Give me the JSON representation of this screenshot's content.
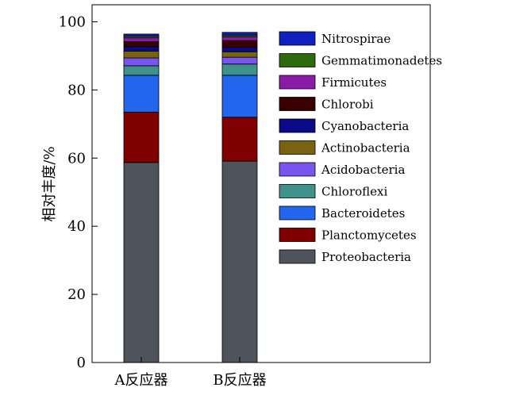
{
  "chart_data": {
    "type": "bar",
    "stacked": true,
    "ylabel": "相对丰度/%",
    "xlabel": "",
    "ylim": [
      0,
      105
    ],
    "yticks": [
      0,
      20,
      40,
      60,
      80,
      100
    ],
    "grid": false,
    "legend_position": "top-right",
    "categories": [
      "A反应器",
      "B反应器"
    ],
    "series": [
      {
        "name": "Proteobacteria",
        "color": "#4f545c",
        "values": [
          58.7,
          59.1
        ]
      },
      {
        "name": "Planctomycetes",
        "color": "#800000",
        "values": [
          14.8,
          12.9
        ]
      },
      {
        "name": "Bacteroidetes",
        "color": "#2266ee",
        "values": [
          10.8,
          12.3
        ]
      },
      {
        "name": "Chloroflexi",
        "color": "#3f918a",
        "values": [
          2.8,
          3.3
        ]
      },
      {
        "name": "Acidobacteria",
        "color": "#7755ee",
        "values": [
          2.3,
          2.0
        ]
      },
      {
        "name": "Actinobacteria",
        "color": "#7a6310",
        "values": [
          2.0,
          1.6
        ]
      },
      {
        "name": "Cyanobacteria",
        "color": "#0a0a88",
        "values": [
          1.3,
          1.3
        ]
      },
      {
        "name": "Chlorobi",
        "color": "#3a0000",
        "values": [
          1.5,
          2.0
        ]
      },
      {
        "name": "Firmicutes",
        "color": "#8a1aa8",
        "values": [
          1.1,
          1.1
        ]
      },
      {
        "name": "Gemmatimonadetes",
        "color": "#2d6a0d",
        "values": [
          0.5,
          0.5
        ]
      },
      {
        "name": "Nitrospirae",
        "color": "#1020c0",
        "values": [
          0.6,
          0.8
        ]
      }
    ]
  }
}
